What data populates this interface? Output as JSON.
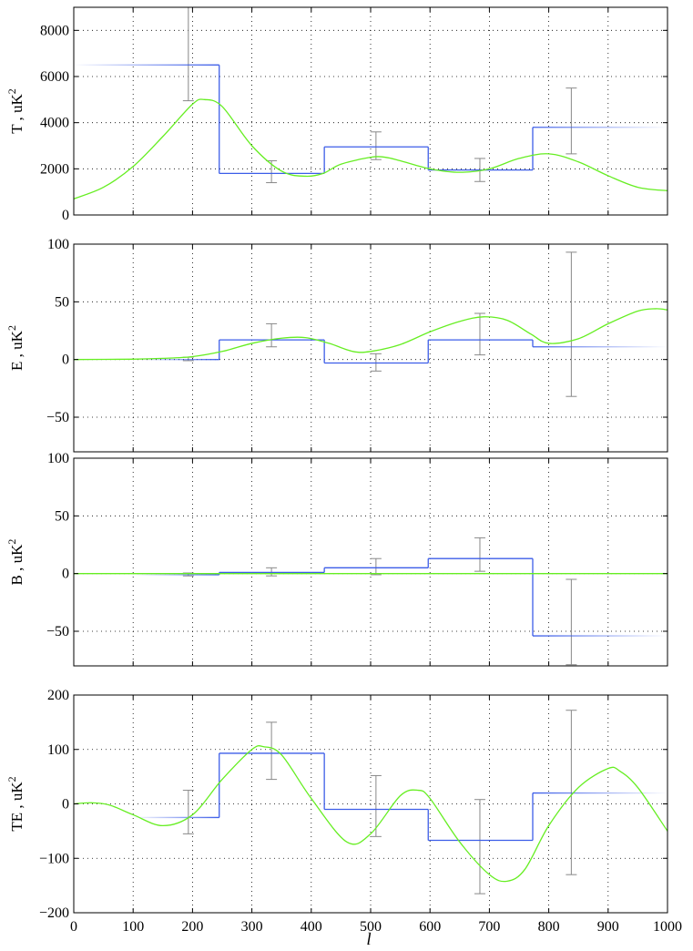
{
  "figure": {
    "xlabel": "l"
  },
  "colors": {
    "binned_spectrum": "#3c5de8",
    "model_curve": "#66ee22",
    "error_bars": "#888888",
    "axes": "#000000",
    "grid": "#000000"
  },
  "chart_data": [
    {
      "type": "line",
      "panel": "T",
      "ylabel": "T , uK",
      "ylabel_superscript": "2",
      "xlim": [
        0,
        1000
      ],
      "ylim": [
        0,
        9000
      ],
      "xticks": [
        0,
        100,
        200,
        300,
        400,
        500,
        600,
        700,
        800,
        900,
        1000
      ],
      "yticks": [
        0,
        2000,
        4000,
        6000,
        8000
      ],
      "ytick_labels": [
        "0",
        "2000",
        "4000",
        "6000",
        "8000"
      ],
      "show_xtick_labels": false,
      "grid": true,
      "bins": [
        {
          "x0": 0,
          "x1": 245,
          "y": 6500,
          "fade_left": true
        },
        {
          "x0": 245,
          "x1": 422,
          "y": 1800
        },
        {
          "x0": 422,
          "x1": 597,
          "y": 2950
        },
        {
          "x0": 597,
          "x1": 773,
          "y": 1950
        },
        {
          "x0": 773,
          "x1": 1000,
          "y": 3800,
          "fade_right": true
        }
      ],
      "error_bars": [
        {
          "x": 193,
          "low": 4950,
          "high": 9000
        },
        {
          "x": 333,
          "low": 1400,
          "high": 2350
        },
        {
          "x": 509,
          "low": 2400,
          "high": 3600
        },
        {
          "x": 684,
          "low": 1450,
          "high": 2450
        },
        {
          "x": 838,
          "low": 2650,
          "high": 5500
        }
      ],
      "model": {
        "x": [
          0,
          50,
          100,
          150,
          200,
          220,
          250,
          300,
          350,
          390,
          420,
          450,
          500,
          525,
          550,
          600,
          650,
          700,
          750,
          800,
          850,
          900,
          950,
          1000
        ],
        "y": [
          700,
          1200,
          2100,
          3400,
          4800,
          5000,
          4700,
          3000,
          1900,
          1680,
          1800,
          2200,
          2500,
          2500,
          2350,
          2000,
          1850,
          2000,
          2450,
          2650,
          2300,
          1700,
          1200,
          1050
        ]
      }
    },
    {
      "type": "line",
      "panel": "E",
      "ylabel": "E , uK",
      "ylabel_superscript": "2",
      "xlim": [
        0,
        1000
      ],
      "ylim": [
        -80,
        100
      ],
      "xticks": [
        0,
        100,
        200,
        300,
        400,
        500,
        600,
        700,
        800,
        900,
        1000
      ],
      "yticks": [
        -50,
        0,
        50,
        100
      ],
      "ytick_labels": [
        "−50",
        "0",
        "50",
        "100"
      ],
      "show_xtick_labels": false,
      "grid": true,
      "bins": [
        {
          "x0": 100,
          "x1": 245,
          "y": 0,
          "fade_left": true
        },
        {
          "x0": 245,
          "x1": 422,
          "y": 17
        },
        {
          "x0": 422,
          "x1": 597,
          "y": -3
        },
        {
          "x0": 597,
          "x1": 773,
          "y": 17
        },
        {
          "x0": 773,
          "x1": 1000,
          "y": 11,
          "fade_right": true
        }
      ],
      "error_bars": [
        {
          "x": 193,
          "low": -1,
          "high": 2
        },
        {
          "x": 333,
          "low": 11,
          "high": 31
        },
        {
          "x": 509,
          "low": -10,
          "high": 5
        },
        {
          "x": 684,
          "low": 4,
          "high": 40
        },
        {
          "x": 838,
          "low": -32,
          "high": 93
        }
      ],
      "model": {
        "x": [
          0,
          100,
          150,
          200,
          250,
          300,
          350,
          390,
          430,
          470,
          500,
          550,
          600,
          650,
          690,
          730,
          770,
          800,
          850,
          900,
          950,
          980,
          1000
        ],
        "y": [
          0,
          0.3,
          1,
          2.5,
          7,
          14,
          18.5,
          19,
          14,
          7,
          7,
          13,
          24,
          33,
          37,
          34,
          22,
          14,
          18,
          31,
          42,
          44,
          43
        ]
      }
    },
    {
      "type": "line",
      "panel": "B",
      "ylabel": "B , uK",
      "ylabel_superscript": "2",
      "xlim": [
        0,
        1000
      ],
      "ylim": [
        -80,
        100
      ],
      "xticks": [
        0,
        100,
        200,
        300,
        400,
        500,
        600,
        700,
        800,
        900,
        1000
      ],
      "yticks": [
        -50,
        0,
        50,
        100
      ],
      "ytick_labels": [
        "−50",
        "0",
        "50",
        "100"
      ],
      "show_xtick_labels": false,
      "grid": true,
      "bins": [
        {
          "x0": 100,
          "x1": 245,
          "y": -1,
          "fade_left": true
        },
        {
          "x0": 245,
          "x1": 422,
          "y": 1
        },
        {
          "x0": 422,
          "x1": 597,
          "y": 5
        },
        {
          "x0": 597,
          "x1": 773,
          "y": 13
        },
        {
          "x0": 773,
          "x1": 1000,
          "y": -54,
          "fade_right": true
        }
      ],
      "error_bars": [
        {
          "x": 193,
          "low": -2,
          "high": 0.5
        },
        {
          "x": 333,
          "low": -2,
          "high": 5
        },
        {
          "x": 509,
          "low": -1,
          "high": 13
        },
        {
          "x": 684,
          "low": 2,
          "high": 31
        },
        {
          "x": 838,
          "low": -79,
          "high": -5
        }
      ],
      "model": {
        "x": [
          0,
          1000
        ],
        "y": [
          0,
          0
        ]
      }
    },
    {
      "type": "line",
      "panel": "TE",
      "ylabel": "TE , uK",
      "ylabel_superscript": "2",
      "xlim": [
        0,
        1000
      ],
      "ylim": [
        -200,
        200
      ],
      "xticks": [
        0,
        100,
        200,
        300,
        400,
        500,
        600,
        700,
        800,
        900,
        1000
      ],
      "xtick_labels": [
        "0",
        "100",
        "200",
        "300",
        "400",
        "500",
        "600",
        "700",
        "800",
        "900",
        "1000"
      ],
      "yticks": [
        -200,
        -100,
        0,
        100,
        200
      ],
      "ytick_labels": [
        "−200",
        "−100",
        "0",
        "100",
        "200"
      ],
      "show_xtick_labels": true,
      "grid": true,
      "bins": [
        {
          "x0": 100,
          "x1": 245,
          "y": -25,
          "fade_left": true
        },
        {
          "x0": 245,
          "x1": 422,
          "y": 93
        },
        {
          "x0": 422,
          "x1": 597,
          "y": -10
        },
        {
          "x0": 597,
          "x1": 773,
          "y": -67
        },
        {
          "x0": 773,
          "x1": 1000,
          "y": 20,
          "fade_right": true
        }
      ],
      "error_bars": [
        {
          "x": 193,
          "low": -55,
          "high": 25
        },
        {
          "x": 333,
          "low": 45,
          "high": 150
        },
        {
          "x": 509,
          "low": -60,
          "high": 52
        },
        {
          "x": 684,
          "low": -165,
          "high": 8
        },
        {
          "x": 838,
          "low": -130,
          "high": 172
        }
      ],
      "model": {
        "x": [
          0,
          30,
          60,
          100,
          150,
          200,
          250,
          300,
          320,
          350,
          400,
          460,
          500,
          550,
          580,
          600,
          650,
          700,
          730,
          760,
          800,
          850,
          900,
          920,
          950,
          1000
        ],
        "y": [
          0,
          2,
          -2,
          -20,
          -40,
          -20,
          45,
          100,
          105,
          90,
          10,
          -70,
          -55,
          15,
          25,
          10,
          -70,
          -130,
          -142,
          -120,
          -40,
          30,
          65,
          60,
          30,
          -50
        ]
      }
    }
  ]
}
